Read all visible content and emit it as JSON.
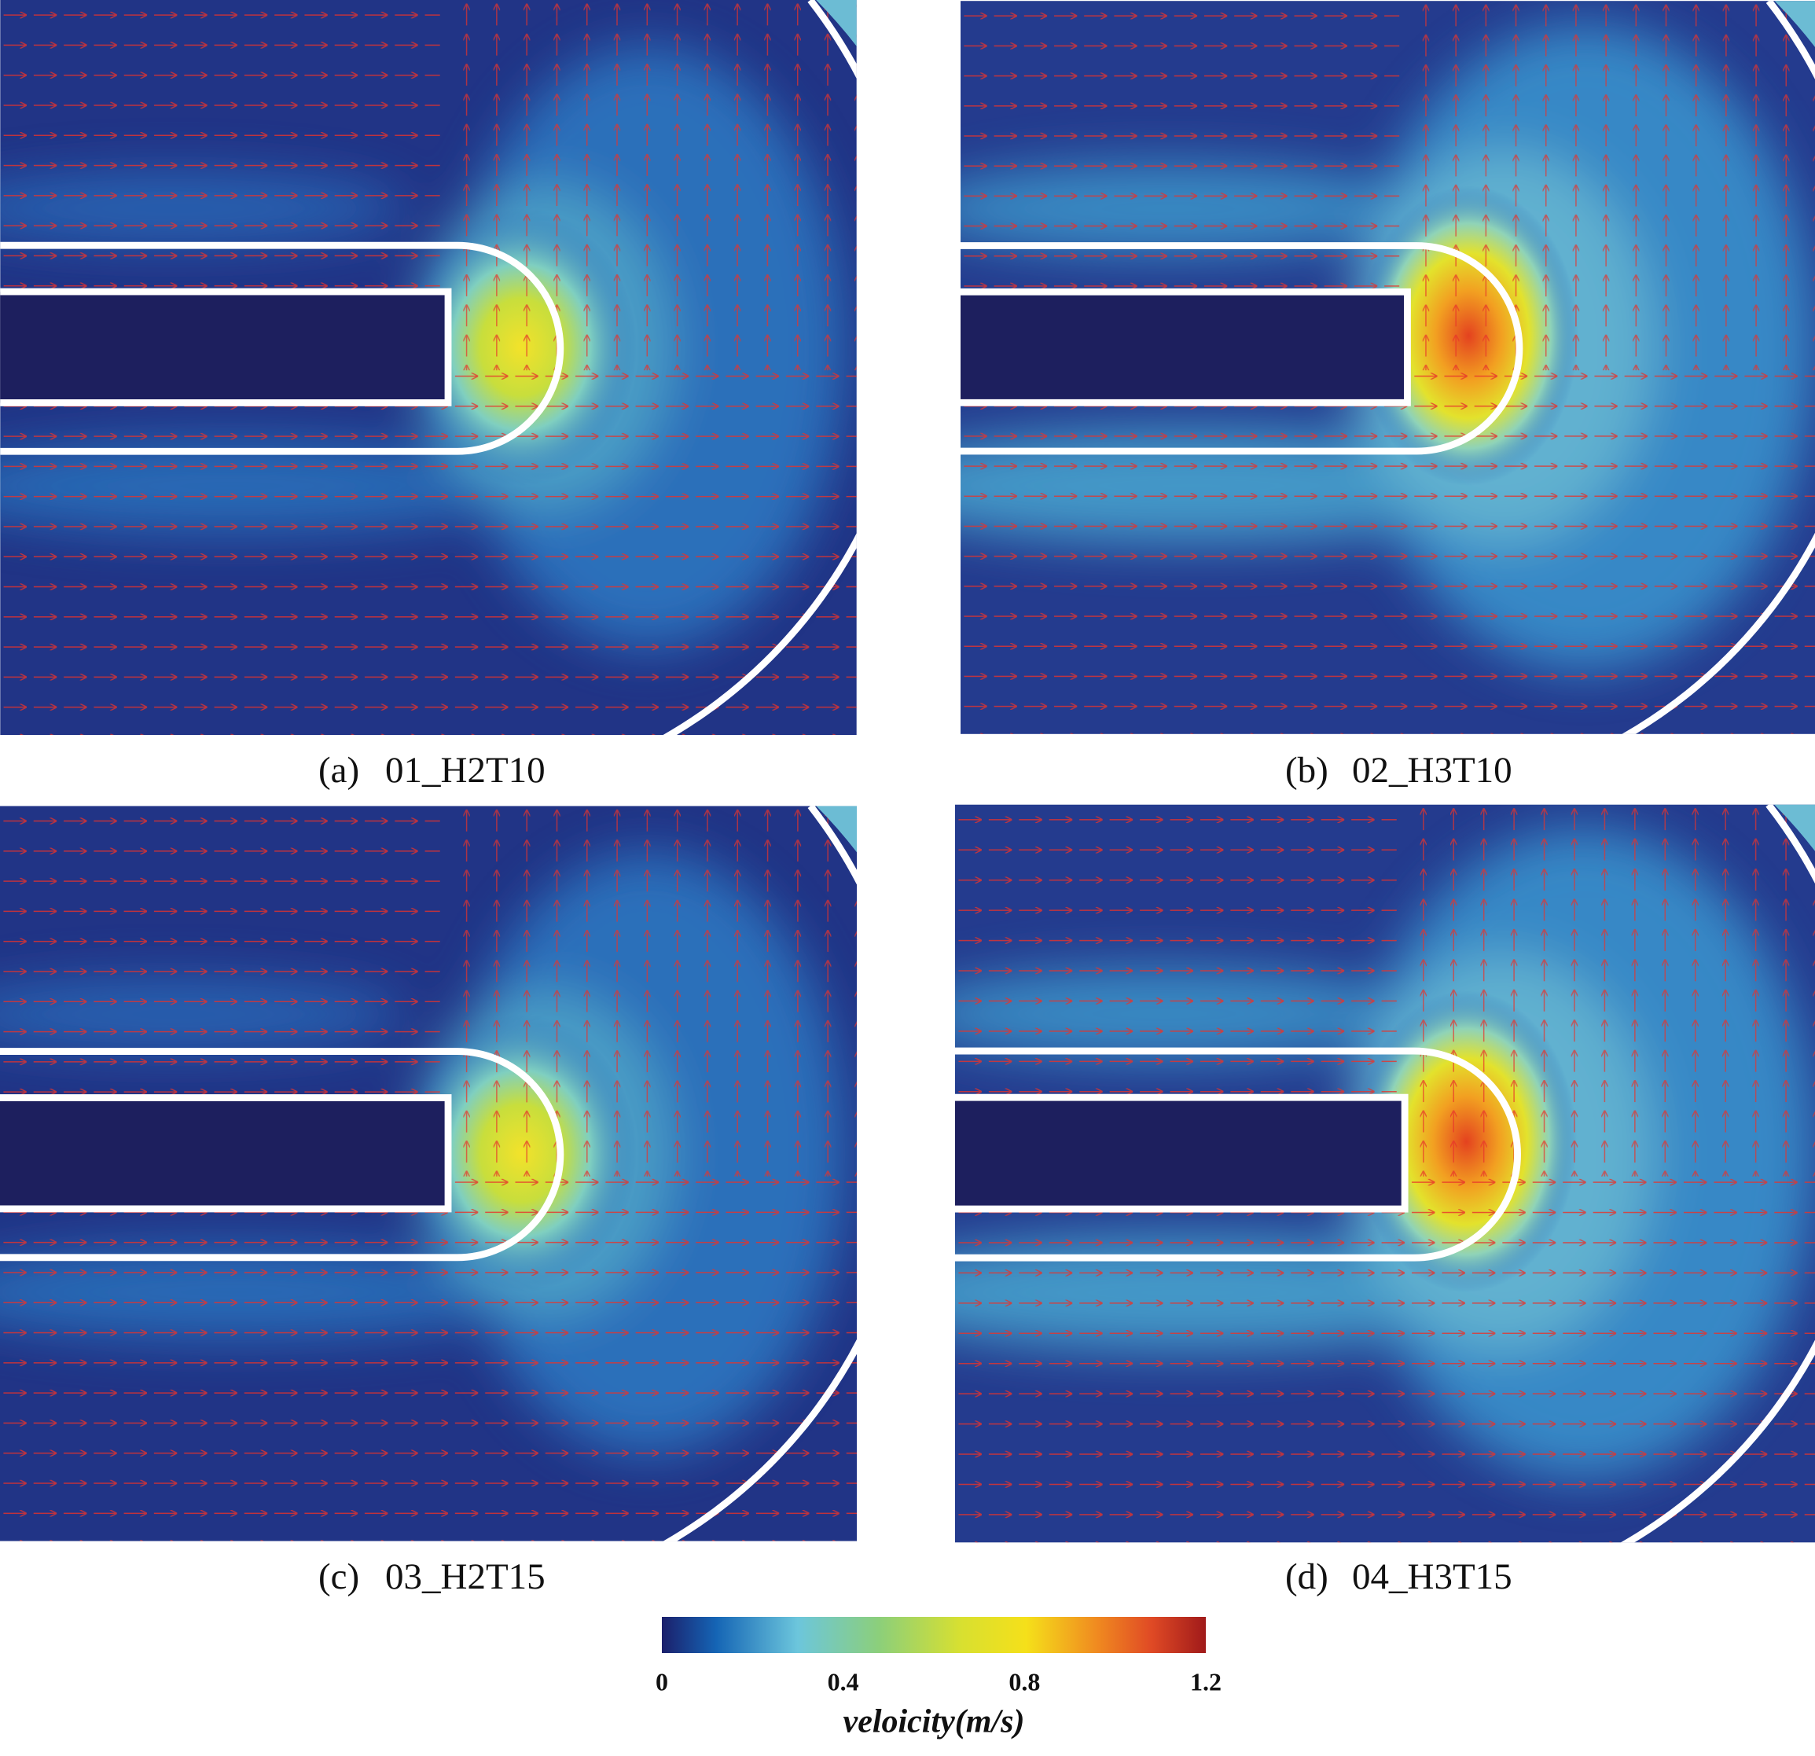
{
  "panels": [
    {
      "label": "(a)",
      "name": "01_H2T10"
    },
    {
      "label": "(b)",
      "name": "02_H3T10"
    },
    {
      "label": "(c)",
      "name": "03_H2T15"
    },
    {
      "label": "(d)",
      "name": "04_H3T15"
    }
  ],
  "colorbar": {
    "lim": [
      0,
      1.2
    ],
    "ticks": [
      0,
      0.4,
      0.8,
      1.2
    ],
    "label": "veloicity(m/s)"
  }
}
